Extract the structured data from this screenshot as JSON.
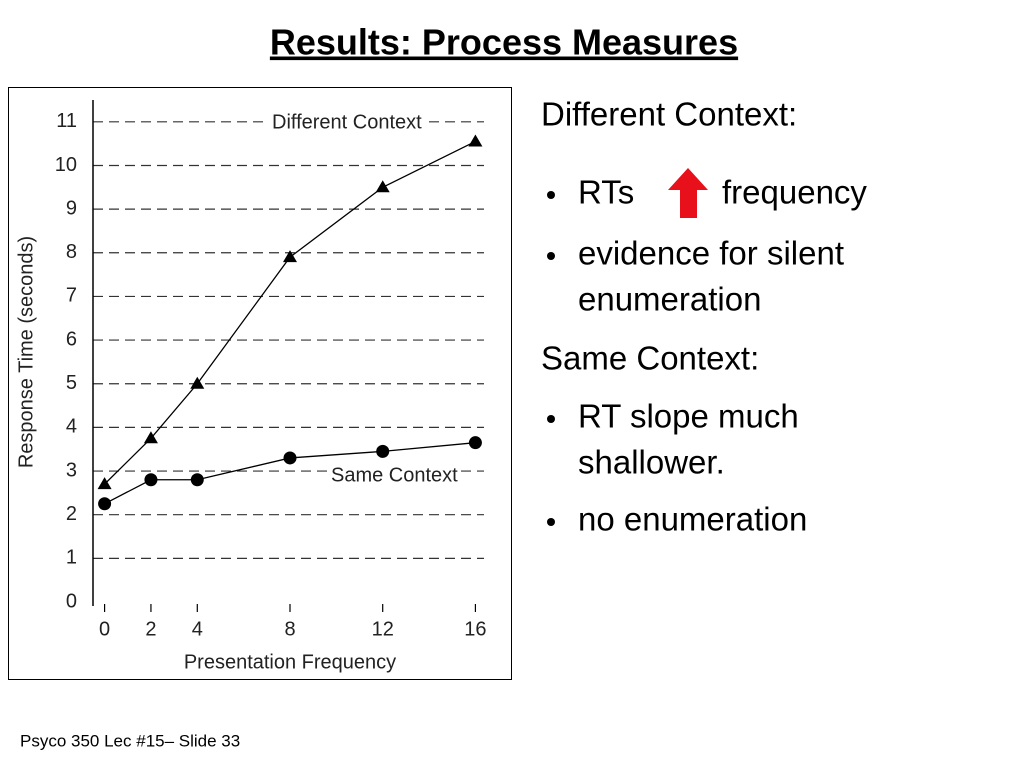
{
  "title": "Results: Process Measures",
  "chart_data": {
    "type": "line",
    "x": [
      0,
      2,
      4,
      8,
      12,
      16
    ],
    "series": [
      {
        "name": "Different Context",
        "color": "#000000",
        "marker": "triangle",
        "values": [
          2.7,
          3.75,
          5.0,
          7.9,
          9.5,
          10.55
        ]
      },
      {
        "name": "Same Context",
        "color": "#000000",
        "marker": "circle",
        "values": [
          2.25,
          2.8,
          2.8,
          3.3,
          3.45,
          3.65
        ]
      }
    ],
    "xlabel": "Presentation Frequency",
    "ylabel": "Response Time (seconds)",
    "xlim": [
      -0.5,
      16.5
    ],
    "xticks": [
      0,
      2,
      4,
      8,
      12,
      16
    ],
    "ylim": [
      0,
      11.5
    ],
    "yticks": [
      0,
      1,
      2,
      3,
      4,
      5,
      6,
      7,
      8,
      9,
      10,
      11
    ],
    "grid": true
  },
  "notes": {
    "heading1": "Different Context:",
    "rts_before": "RTs",
    "rts_after": "frequency",
    "bullet2": [
      "evidence for silent",
      "enumeration"
    ],
    "heading2": "Same Context:",
    "bullet3": [
      "RT slope much",
      "shallower."
    ],
    "bullet4": "no enumeration"
  },
  "footer": "Psyco 350 Lec #15– Slide 33"
}
